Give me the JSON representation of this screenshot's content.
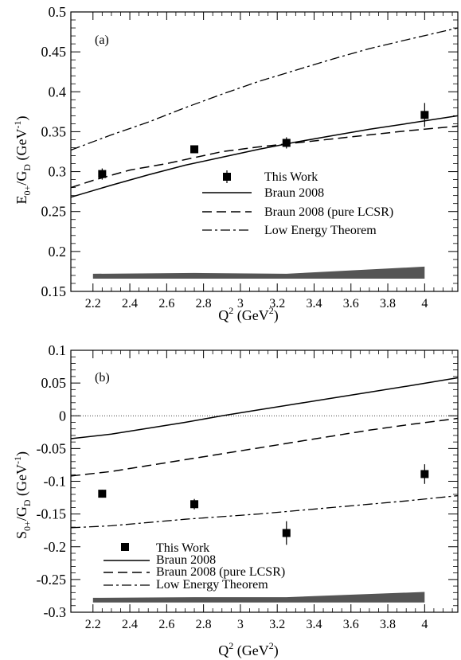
{
  "chart_data": [
    {
      "type": "line",
      "panel_label": "(a)",
      "xlabel": "Q^2 (GeV^2)",
      "ylabel": "E_0+/G_D (GeV^-1)",
      "xlim": [
        2.08,
        4.18
      ],
      "ylim": [
        0.15,
        0.5
      ],
      "x_ticks": [
        "2.2",
        "2.4",
        "2.6",
        "2.8",
        "3",
        "3.2",
        "3.4",
        "3.6",
        "3.8",
        "4"
      ],
      "x_tick_values": [
        2.2,
        2.4,
        2.6,
        2.8,
        3.0,
        3.2,
        3.4,
        3.6,
        3.8,
        4.0
      ],
      "y_ticks": [
        "0.15",
        "0.2",
        "0.25",
        "0.3",
        "0.35",
        "0.4",
        "0.45",
        "0.5"
      ],
      "y_tick_values": [
        0.15,
        0.2,
        0.25,
        0.3,
        0.35,
        0.4,
        0.45,
        0.5
      ],
      "grid": false,
      "legend_position": "center-right",
      "points": {
        "name": "This Work",
        "x": [
          2.25,
          2.75,
          3.25,
          4.0
        ],
        "y": [
          0.297,
          0.328,
          0.336,
          0.371
        ],
        "err": [
          0.007,
          0.003,
          0.007,
          0.015
        ]
      },
      "series": [
        {
          "name": "Braun 2008",
          "style": "solid",
          "x": [
            2.08,
            2.3,
            2.5,
            2.7,
            2.9,
            3.1,
            3.3,
            3.5,
            3.7,
            3.9,
            4.18
          ],
          "y": [
            0.268,
            0.283,
            0.296,
            0.308,
            0.318,
            0.328,
            0.337,
            0.345,
            0.353,
            0.36,
            0.37
          ]
        },
        {
          "name": "Braun 2008 (pure LCSR)",
          "style": "dashed",
          "x": [
            2.08,
            2.2,
            2.4,
            2.6,
            2.8,
            2.9,
            3.1,
            3.3,
            3.5,
            3.7,
            3.9,
            4.18
          ],
          "y": [
            0.28,
            0.289,
            0.302,
            0.31,
            0.32,
            0.325,
            0.331,
            0.336,
            0.341,
            0.346,
            0.351,
            0.357
          ]
        },
        {
          "name": "Low Energy Theorem",
          "style": "dashdot",
          "x": [
            2.08,
            2.3,
            2.5,
            2.7,
            2.9,
            3.1,
            3.3,
            3.5,
            3.7,
            3.9,
            4.18
          ],
          "y": [
            0.327,
            0.346,
            0.362,
            0.38,
            0.397,
            0.413,
            0.427,
            0.441,
            0.454,
            0.465,
            0.48
          ]
        }
      ],
      "systematic_band": {
        "x": [
          2.2,
          2.75,
          3.25,
          4.0
        ],
        "low": [
          0.166,
          0.166,
          0.166,
          0.166
        ],
        "high": [
          0.172,
          0.173,
          0.172,
          0.181
        ]
      }
    },
    {
      "type": "line",
      "panel_label": "(b)",
      "xlabel": "Q^2 (GeV^2)",
      "ylabel": "S_0+/G_D (GeV^-1)",
      "xlim": [
        2.08,
        4.18
      ],
      "ylim": [
        -0.3,
        0.1
      ],
      "x_ticks": [
        "2.2",
        "2.4",
        "2.6",
        "2.8",
        "3",
        "3.2",
        "3.4",
        "3.6",
        "3.8",
        "4"
      ],
      "x_tick_values": [
        2.2,
        2.4,
        2.6,
        2.8,
        3.0,
        3.2,
        3.4,
        3.6,
        3.8,
        4.0
      ],
      "y_ticks": [
        "0.1",
        "0.05",
        "0",
        "-0.05",
        "-0.1",
        "-0.15",
        "-0.2",
        "-0.25",
        "-0.3"
      ],
      "y_tick_values": [
        0.1,
        0.05,
        0,
        -0.05,
        -0.1,
        -0.15,
        -0.2,
        -0.25,
        -0.3
      ],
      "grid": false,
      "legend_position": "bottom-left",
      "zero_line": true,
      "points": {
        "name": "This Work",
        "x": [
          2.25,
          2.75,
          3.25,
          4.0
        ],
        "y": [
          -0.119,
          -0.135,
          -0.179,
          -0.089
        ],
        "err": [
          0.006,
          0.008,
          0.018,
          0.015
        ]
      },
      "series": [
        {
          "name": "Braun 2008",
          "style": "solid",
          "x": [
            2.08,
            2.3,
            2.5,
            2.7,
            2.9,
            3.1,
            3.3,
            3.5,
            3.7,
            3.9,
            4.18
          ],
          "y": [
            -0.035,
            -0.028,
            -0.019,
            -0.01,
            0.0,
            0.009,
            0.018,
            0.027,
            0.036,
            0.045,
            0.058
          ]
        },
        {
          "name": "Braun 2008 (pure LCSR)",
          "style": "dashed",
          "x": [
            2.08,
            2.3,
            2.5,
            2.7,
            2.9,
            3.1,
            3.3,
            3.5,
            3.7,
            3.9,
            4.18
          ],
          "y": [
            -0.092,
            -0.085,
            -0.076,
            -0.067,
            -0.058,
            -0.049,
            -0.04,
            -0.031,
            -0.022,
            -0.014,
            -0.004
          ]
        },
        {
          "name": "Low Energy Theorem",
          "style": "dashdot",
          "x": [
            2.08,
            2.3,
            2.5,
            2.7,
            2.9,
            3.1,
            3.3,
            3.5,
            3.7,
            3.9,
            4.18
          ],
          "y": [
            -0.171,
            -0.168,
            -0.163,
            -0.158,
            -0.154,
            -0.15,
            -0.145,
            -0.14,
            -0.135,
            -0.13,
            -0.122
          ]
        }
      ],
      "systematic_band": {
        "x": [
          2.2,
          2.75,
          3.25,
          4.0
        ],
        "low": [
          -0.285,
          -0.285,
          -0.285,
          -0.285
        ],
        "high": [
          -0.278,
          -0.277,
          -0.277,
          -0.269
        ]
      }
    }
  ],
  "legend_labels": {
    "this_work": "This Work",
    "braun": "Braun 2008",
    "braun_lcsr": "Braun 2008 (pure LCSR)",
    "let": "Low Energy Theorem"
  },
  "axis_text": {
    "a_panel": "(a)",
    "b_panel": "(b)",
    "x_q": "Q",
    "x_sup": "2",
    "x_unit_open": " (GeV",
    "x_unit_sup": "2",
    "x_unit_close": ")",
    "a_y_main": "E",
    "a_y_sub": "0+",
    "a_y_mid": "/G",
    "a_y_sub2": "D",
    "a_y_unit": " (GeV",
    "a_y_unit_sup": "-1",
    "a_y_close": ")",
    "b_y_main": "S",
    "b_y_sub": "0+",
    "b_y_mid": "/G",
    "b_y_sub2": "D",
    "b_y_unit": " (GeV",
    "b_y_unit_sup": "-1",
    "b_y_close": ")"
  },
  "colors": {
    "line": "#000000",
    "band": "#555555",
    "background": "#ffffff"
  }
}
